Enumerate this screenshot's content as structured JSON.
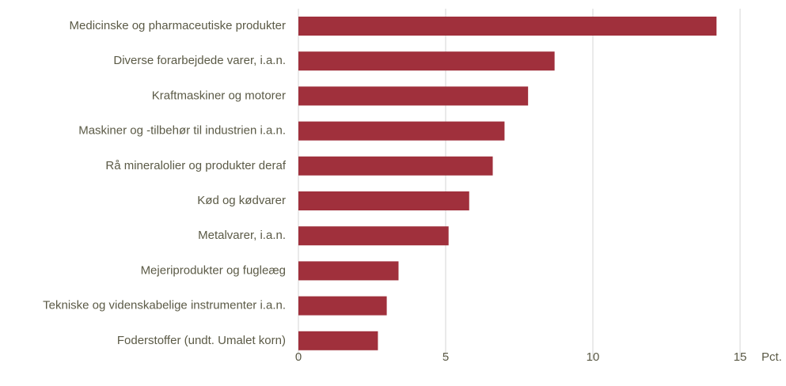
{
  "chart_data": {
    "type": "bar",
    "orientation": "horizontal",
    "categories": [
      "Medicinske og pharmaceutiske produkter",
      "Diverse forarbejdede varer, i.a.n.",
      "Kraftmaskiner og motorer",
      "Maskiner og -tilbehør til industrien i.a.n.",
      "Rå mineralolier og produkter deraf",
      "Kød og kødvarer",
      "Metalvarer, i.a.n.",
      "Mejeriprodukter og fugleæg",
      "Tekniske og videnskabelige instrumenter i.a.n.",
      "Foderstoffer (undt. Umalet korn)"
    ],
    "values": [
      14.2,
      8.7,
      7.8,
      7.0,
      6.6,
      5.8,
      5.1,
      3.4,
      3.0,
      2.7
    ],
    "color": "#a0303c",
    "x_label": "Pct.",
    "xlim": [
      0,
      15
    ],
    "xticks": [
      0,
      5,
      10,
      15
    ],
    "grid": true
  }
}
